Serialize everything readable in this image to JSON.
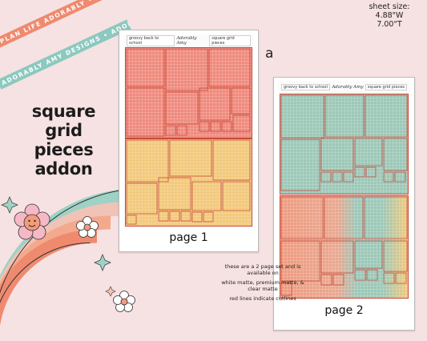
{
  "ribbons": {
    "pink_text": "PLAN LIFE ADORABLY • PLAN LIFE ADORABLY • PLAN LIFE ADORABLY",
    "teal_text": "ADORABLY AMY DESIGNS • ADORABLY AMY DESIGNS • ADORABLY AMY DESIGNS",
    "pink_color": "#ef8a6f",
    "teal_color": "#8cc9bf"
  },
  "title": {
    "line1": "square grid",
    "line2": "pieces",
    "line3": "addon"
  },
  "sheet_size": {
    "label": "sheet size:",
    "width": "4.88\"W",
    "height": "7.00\"T"
  },
  "variant_letter": "a",
  "sheets": [
    {
      "header_left": "groovy back to school",
      "header_logo": "Adorably Amy",
      "header_right": "square grid pieces",
      "page_label": "page 1",
      "top_color": "#ef8a7d",
      "bottom_color": "#f2c97a"
    },
    {
      "header_left": "groovy back to school",
      "header_logo": "Adorably Amy",
      "header_right": "square grid pieces",
      "page_label": "page 2",
      "top_color": "#9cc8b8",
      "bottom_color": "#ef9a7e"
    }
  ],
  "note": {
    "line1": "these are a 2 page set and is available on",
    "line2": "white matte, premium matte, & clear matte",
    "line3": "red lines indicate cutlines"
  },
  "colors": {
    "cutline": "#c84a3a",
    "background": "#f6e2e2",
    "grid_line": "#ffffff"
  }
}
